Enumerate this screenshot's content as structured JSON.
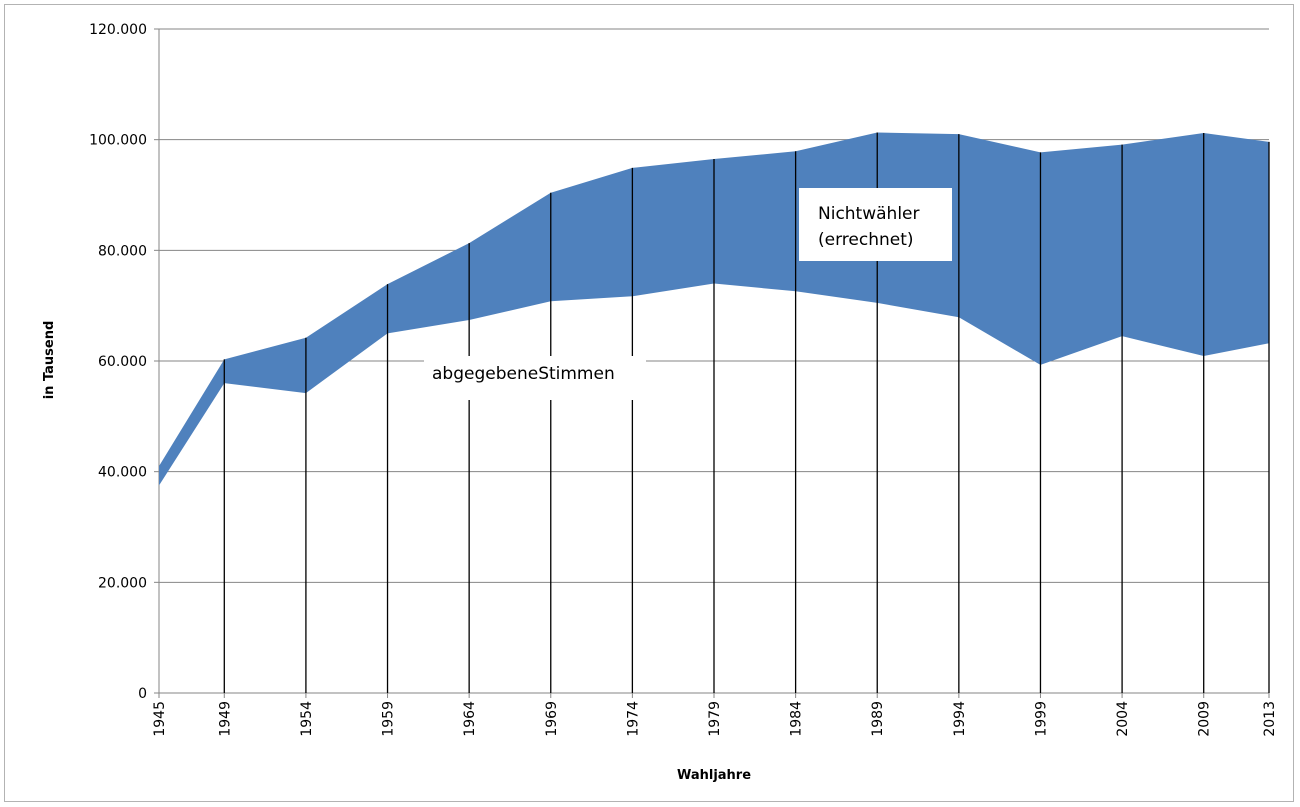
{
  "chart_data": {
    "type": "area",
    "title": "",
    "xlabel": "Wahljahre",
    "ylabel": "in Tausend",
    "ylim": [
      0,
      120000
    ],
    "y_ticks": [
      0,
      20000,
      40000,
      60000,
      80000,
      100000,
      120000
    ],
    "y_tick_labels": [
      "0",
      "20.000",
      "40.000",
      "60.000",
      "80.000",
      "100.000",
      "120.000"
    ],
    "grid": "horizontal",
    "categories": [
      "1945",
      "1949",
      "1954",
      "1959",
      "1964",
      "1969",
      "1974",
      "1979",
      "1984",
      "1989",
      "1994",
      "1999",
      "2004",
      "2009",
      "2013"
    ],
    "series": [
      {
        "values": [
          37500,
          56000,
          54200,
          65000,
          67400,
          70800,
          71700,
          74000,
          72600,
          70500,
          67900,
          59300,
          64500,
          60900,
          63200
        ]
      },
      {
        "values": [
          41000,
          60300,
          64200,
          73900,
          81300,
          90400,
          94900,
          96500,
          97900,
          101300,
          101000,
          97700,
          99100,
          101200,
          99600
        ]
      }
    ],
    "annotations": [
      {
        "text": "abgegebeneStimmen"
      },
      {
        "text": "Nichtwähler"
      },
      {
        "text": "(errechnet)"
      }
    ],
    "colors": {
      "fill": "#4f81bd",
      "drop_line": "#000000",
      "grid": "#868686"
    }
  }
}
